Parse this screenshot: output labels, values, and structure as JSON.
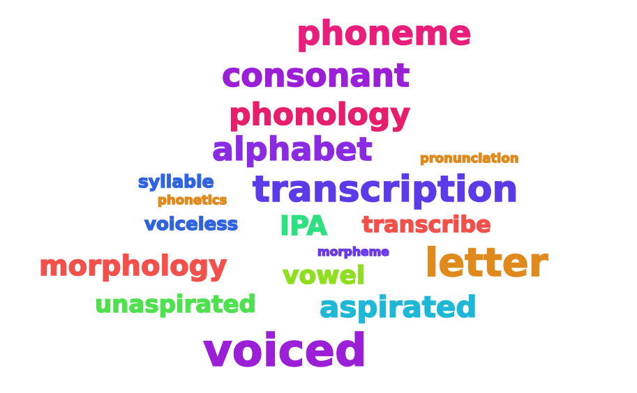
{
  "words": [
    {
      "id": "phoneme",
      "text": "phoneme",
      "color": "#e91e7a"
    },
    {
      "id": "consonant",
      "text": "consonant",
      "color": "#9b1fd6"
    },
    {
      "id": "phonology",
      "text": "phonology",
      "color": "#e61e6b"
    },
    {
      "id": "alphabet",
      "text": "alphabet",
      "color": "#8a2be2"
    },
    {
      "id": "pronunciation",
      "text": "pronunciation",
      "color": "#e08a1e"
    },
    {
      "id": "syllable",
      "text": "syllable",
      "color": "#2f63e0"
    },
    {
      "id": "transcription",
      "text": "transcription",
      "color": "#5b3ae8"
    },
    {
      "id": "phonetics",
      "text": "phonetics",
      "color": "#e08a1e"
    },
    {
      "id": "voiceless",
      "text": "voiceless",
      "color": "#2f63e0"
    },
    {
      "id": "ipa",
      "text": "IPA",
      "color": "#2ee080"
    },
    {
      "id": "transcribe",
      "text": "transcribe",
      "color": "#f2504a"
    },
    {
      "id": "morpheme",
      "text": "morpheme",
      "color": "#6a3ae8"
    },
    {
      "id": "morphology",
      "text": "morphology",
      "color": "#f2504a"
    },
    {
      "id": "letter",
      "text": "letter",
      "color": "#e08a1e"
    },
    {
      "id": "vowel",
      "text": "vowel",
      "color": "#8ee01e"
    },
    {
      "id": "unaspirated",
      "text": "unaspirated",
      "color": "#4ee04e"
    },
    {
      "id": "aspirated",
      "text": "aspirated",
      "color": "#1eb8d6"
    },
    {
      "id": "voiced",
      "text": "voiced",
      "color": "#9b1fd6"
    }
  ]
}
